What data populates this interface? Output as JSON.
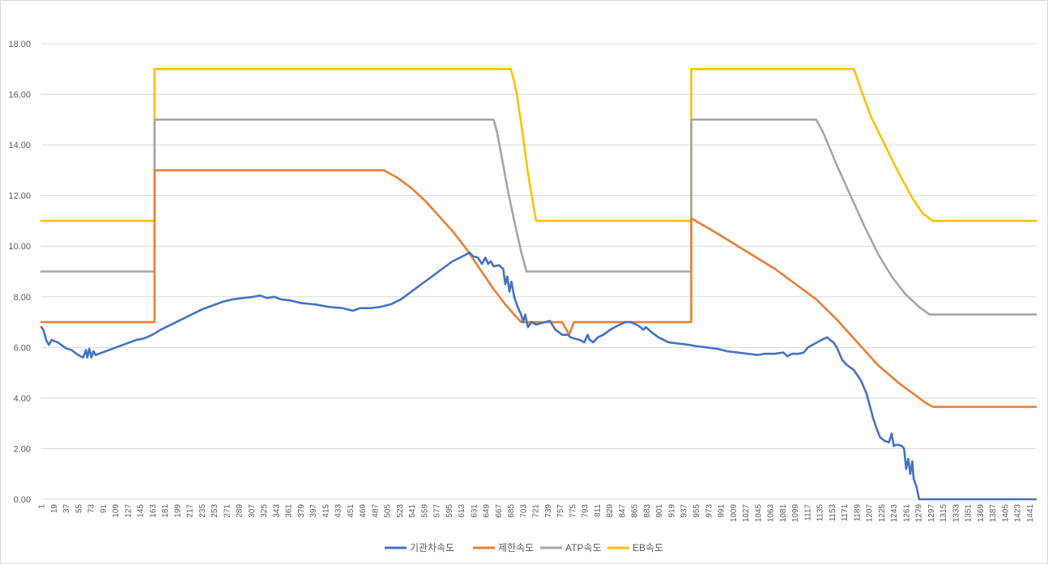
{
  "chart_data": {
    "type": "line",
    "title": "",
    "xlabel": "",
    "ylabel": "",
    "ylim": [
      0,
      18
    ],
    "y_ticks": [
      "0.00",
      "2.00",
      "4.00",
      "6.00",
      "8.00",
      "10.00",
      "12.00",
      "14.00",
      "16.00",
      "18.00"
    ],
    "x_range": [
      1,
      1450
    ],
    "x_ticks": [
      "1",
      "19",
      "37",
      "55",
      "73",
      "91",
      "109",
      "127",
      "145",
      "163",
      "181",
      "199",
      "217",
      "235",
      "253",
      "271",
      "289",
      "307",
      "325",
      "343",
      "361",
      "379",
      "397",
      "415",
      "433",
      "451",
      "469",
      "487",
      "505",
      "523",
      "541",
      "559",
      "577",
      "595",
      "613",
      "631",
      "649",
      "667",
      "685",
      "703",
      "721",
      "739",
      "757",
      "775",
      "793",
      "811",
      "829",
      "847",
      "865",
      "883",
      "901",
      "919",
      "937",
      "955",
      "973",
      "991",
      "1009",
      "1027",
      "1045",
      "1063",
      "1081",
      "1099",
      "1117",
      "1135",
      "1153",
      "1171",
      "1189",
      "1207",
      "1225",
      "1243",
      "1261",
      "1279",
      "1297",
      "1315",
      "1333",
      "1351",
      "1369",
      "1387",
      "1405",
      "1423",
      "1441"
    ],
    "grid": "horizontal",
    "legend": "bottom",
    "series": [
      {
        "name": "기관차속도",
        "color": "#4472C4",
        "points": [
          [
            1,
            6.8
          ],
          [
            4,
            6.7
          ],
          [
            8,
            6.3
          ],
          [
            12,
            6.1
          ],
          [
            16,
            6.3
          ],
          [
            20,
            6.25
          ],
          [
            25,
            6.2
          ],
          [
            30,
            6.1
          ],
          [
            38,
            5.95
          ],
          [
            45,
            5.9
          ],
          [
            52,
            5.75
          ],
          [
            58,
            5.65
          ],
          [
            62,
            5.6
          ],
          [
            66,
            5.9
          ],
          [
            68,
            5.6
          ],
          [
            71,
            5.95
          ],
          [
            74,
            5.6
          ],
          [
            77,
            5.85
          ],
          [
            80,
            5.7
          ],
          [
            90,
            5.8
          ],
          [
            100,
            5.9
          ],
          [
            110,
            6.0
          ],
          [
            120,
            6.1
          ],
          [
            130,
            6.2
          ],
          [
            140,
            6.3
          ],
          [
            150,
            6.35
          ],
          [
            163,
            6.5
          ],
          [
            175,
            6.7
          ],
          [
            190,
            6.9
          ],
          [
            205,
            7.1
          ],
          [
            220,
            7.3
          ],
          [
            235,
            7.5
          ],
          [
            250,
            7.65
          ],
          [
            265,
            7.8
          ],
          [
            280,
            7.9
          ],
          [
            295,
            7.95
          ],
          [
            310,
            8.0
          ],
          [
            320,
            8.05
          ],
          [
            330,
            7.95
          ],
          [
            340,
            8.0
          ],
          [
            350,
            7.9
          ],
          [
            365,
            7.85
          ],
          [
            380,
            7.75
          ],
          [
            400,
            7.7
          ],
          [
            420,
            7.6
          ],
          [
            440,
            7.55
          ],
          [
            455,
            7.45
          ],
          [
            465,
            7.55
          ],
          [
            480,
            7.55
          ],
          [
            495,
            7.6
          ],
          [
            510,
            7.7
          ],
          [
            525,
            7.9
          ],
          [
            540,
            8.2
          ],
          [
            555,
            8.5
          ],
          [
            570,
            8.8
          ],
          [
            585,
            9.1
          ],
          [
            600,
            9.4
          ],
          [
            615,
            9.6
          ],
          [
            625,
            9.75
          ],
          [
            630,
            9.6
          ],
          [
            637,
            9.55
          ],
          [
            643,
            9.3
          ],
          [
            648,
            9.55
          ],
          [
            652,
            9.3
          ],
          [
            656,
            9.4
          ],
          [
            660,
            9.2
          ],
          [
            668,
            9.25
          ],
          [
            674,
            9.1
          ],
          [
            677,
            8.5
          ],
          [
            680,
            8.8
          ],
          [
            683,
            8.2
          ],
          [
            686,
            8.6
          ],
          [
            690,
            8.0
          ],
          [
            695,
            7.6
          ],
          [
            700,
            7.3
          ],
          [
            703,
            7.0
          ],
          [
            706,
            7.3
          ],
          [
            710,
            6.8
          ],
          [
            715,
            7.0
          ],
          [
            722,
            6.9
          ],
          [
            728,
            6.95
          ],
          [
            735,
            7.0
          ],
          [
            742,
            7.05
          ],
          [
            750,
            6.7
          ],
          [
            755,
            6.6
          ],
          [
            760,
            6.5
          ],
          [
            768,
            6.5
          ],
          [
            772,
            6.4
          ],
          [
            778,
            6.35
          ],
          [
            785,
            6.3
          ],
          [
            792,
            6.2
          ],
          [
            797,
            6.5
          ],
          [
            800,
            6.3
          ],
          [
            805,
            6.2
          ],
          [
            812,
            6.4
          ],
          [
            820,
            6.5
          ],
          [
            830,
            6.7
          ],
          [
            840,
            6.85
          ],
          [
            852,
            7.0
          ],
          [
            860,
            7.0
          ],
          [
            868,
            6.9
          ],
          [
            874,
            6.8
          ],
          [
            878,
            6.7
          ],
          [
            882,
            6.8
          ],
          [
            890,
            6.6
          ],
          [
            900,
            6.4
          ],
          [
            915,
            6.2
          ],
          [
            930,
            6.15
          ],
          [
            945,
            6.1
          ],
          [
            955,
            6.05
          ],
          [
            970,
            6.0
          ],
          [
            985,
            5.95
          ],
          [
            1000,
            5.85
          ],
          [
            1015,
            5.8
          ],
          [
            1030,
            5.75
          ],
          [
            1045,
            5.7
          ],
          [
            1055,
            5.75
          ],
          [
            1070,
            5.75
          ],
          [
            1082,
            5.8
          ],
          [
            1088,
            5.65
          ],
          [
            1095,
            5.75
          ],
          [
            1105,
            5.75
          ],
          [
            1112,
            5.8
          ],
          [
            1118,
            6.0
          ],
          [
            1128,
            6.15
          ],
          [
            1138,
            6.3
          ],
          [
            1146,
            6.4
          ],
          [
            1150,
            6.3
          ],
          [
            1155,
            6.2
          ],
          [
            1160,
            6.0
          ],
          [
            1168,
            5.5
          ],
          [
            1175,
            5.3
          ],
          [
            1185,
            5.1
          ],
          [
            1195,
            4.7
          ],
          [
            1203,
            4.2
          ],
          [
            1208,
            3.7
          ],
          [
            1213,
            3.2
          ],
          [
            1218,
            2.8
          ],
          [
            1223,
            2.45
          ],
          [
            1230,
            2.3
          ],
          [
            1236,
            2.25
          ],
          [
            1240,
            2.6
          ],
          [
            1243,
            2.1
          ],
          [
            1246,
            2.15
          ],
          [
            1250,
            2.15
          ],
          [
            1255,
            2.1
          ],
          [
            1258,
            2.0
          ],
          [
            1261,
            1.2
          ],
          [
            1264,
            1.6
          ],
          [
            1267,
            1.0
          ],
          [
            1270,
            1.5
          ],
          [
            1272,
            0.8
          ],
          [
            1276,
            0.5
          ],
          [
            1280,
            0.0
          ],
          [
            1450,
            0.0
          ]
        ]
      },
      {
        "name": "제한속도",
        "color": "#ED7D31",
        "points": [
          [
            1,
            7.0
          ],
          [
            166,
            7.0
          ],
          [
            166,
            13.0
          ],
          [
            500,
            13.0
          ],
          [
            520,
            12.7
          ],
          [
            540,
            12.3
          ],
          [
            560,
            11.8
          ],
          [
            580,
            11.2
          ],
          [
            600,
            10.6
          ],
          [
            620,
            9.9
          ],
          [
            640,
            9.1
          ],
          [
            660,
            8.3
          ],
          [
            680,
            7.6
          ],
          [
            700,
            7.0
          ],
          [
            760,
            7.0
          ],
          [
            770,
            6.5
          ],
          [
            777,
            7.0
          ],
          [
            948,
            7.0
          ],
          [
            948,
            11.1
          ],
          [
            980,
            10.6
          ],
          [
            1010,
            10.1
          ],
          [
            1040,
            9.6
          ],
          [
            1070,
            9.1
          ],
          [
            1100,
            8.5
          ],
          [
            1130,
            7.9
          ],
          [
            1160,
            7.1
          ],
          [
            1190,
            6.2
          ],
          [
            1220,
            5.3
          ],
          [
            1250,
            4.6
          ],
          [
            1275,
            4.1
          ],
          [
            1290,
            3.8
          ],
          [
            1300,
            3.65
          ],
          [
            1450,
            3.65
          ]
        ]
      },
      {
        "name": "ATP속도",
        "color": "#A5A5A5",
        "points": [
          [
            1,
            9.0
          ],
          [
            166,
            9.0
          ],
          [
            166,
            15.0
          ],
          [
            660,
            15.0
          ],
          [
            665,
            14.5
          ],
          [
            672,
            13.5
          ],
          [
            680,
            12.3
          ],
          [
            690,
            11.0
          ],
          [
            700,
            9.8
          ],
          [
            708,
            9.0
          ],
          [
            948,
            9.0
          ],
          [
            948,
            15.0
          ],
          [
            1130,
            15.0
          ],
          [
            1140,
            14.5
          ],
          [
            1160,
            13.2
          ],
          [
            1180,
            12.0
          ],
          [
            1200,
            10.8
          ],
          [
            1220,
            9.7
          ],
          [
            1240,
            8.8
          ],
          [
            1260,
            8.1
          ],
          [
            1280,
            7.6
          ],
          [
            1295,
            7.3
          ],
          [
            1450,
            7.3
          ]
        ]
      },
      {
        "name": "EB속도",
        "color": "#FFC000",
        "points": [
          [
            1,
            11.0
          ],
          [
            166,
            11.0
          ],
          [
            166,
            17.0
          ],
          [
            685,
            17.0
          ],
          [
            690,
            16.5
          ],
          [
            695,
            15.8
          ],
          [
            702,
            14.5
          ],
          [
            710,
            12.9
          ],
          [
            718,
            11.6
          ],
          [
            722,
            11.0
          ],
          [
            948,
            11.0
          ],
          [
            948,
            17.0
          ],
          [
            1185,
            17.0
          ],
          [
            1195,
            16.2
          ],
          [
            1210,
            15.1
          ],
          [
            1230,
            14.0
          ],
          [
            1250,
            12.9
          ],
          [
            1270,
            11.9
          ],
          [
            1285,
            11.3
          ],
          [
            1300,
            11.0
          ],
          [
            1450,
            11.0
          ]
        ]
      }
    ]
  }
}
